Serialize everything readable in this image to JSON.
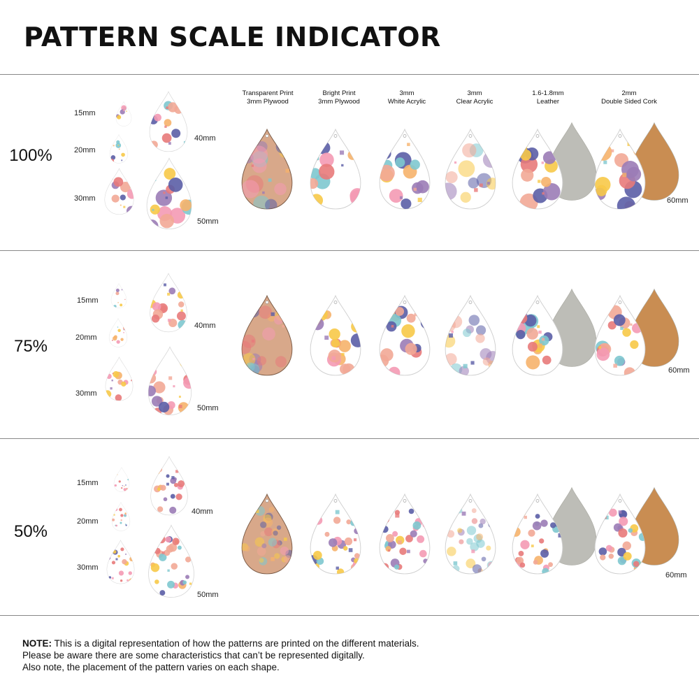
{
  "title": "PATTERN SCALE INDICATOR",
  "materials": [
    {
      "line1": "Transparent Print",
      "line2": "3mm Plywood",
      "base": "#d8a88a",
      "backing": ""
    },
    {
      "line1": "Bright Print",
      "line2": "3mm Plywood",
      "base": "#ffffff",
      "backing": ""
    },
    {
      "line1": "3mm",
      "line2": "White Acrylic",
      "base": "#ffffff",
      "backing": ""
    },
    {
      "line1": "3mm",
      "line2": "Clear Acrylic",
      "base": "#ffffff",
      "backing": ""
    },
    {
      "line1": "1.6-1.8mm",
      "line2": "Leather",
      "base": "#ffffff",
      "backing": "#bdbdb7"
    },
    {
      "line1": "2mm",
      "line2": "Double Sided Cork",
      "base": "#ffffff",
      "backing": "#c98d52"
    }
  ],
  "sizes": [
    "15mm",
    "20mm",
    "30mm",
    "40mm",
    "50mm"
  ],
  "material_size": "60mm",
  "scales": [
    {
      "label": "100%"
    },
    {
      "label": "75%"
    },
    {
      "label": "50%"
    }
  ],
  "palette": [
    "#f2a896",
    "#f7c948",
    "#5b5ea6",
    "#7ec8cf",
    "#f49ab4",
    "#9b7cb6",
    "#f6b26b",
    "#e87a7a"
  ],
  "note": {
    "bold": "NOTE:",
    "line1": " This is a digital representation of how the patterns are printed on the different materials.",
    "line2": "Please be aware there are some characteristics that can’t be represented digitally.",
    "line3": "Also note, the placement of the pattern varies on each shape."
  }
}
